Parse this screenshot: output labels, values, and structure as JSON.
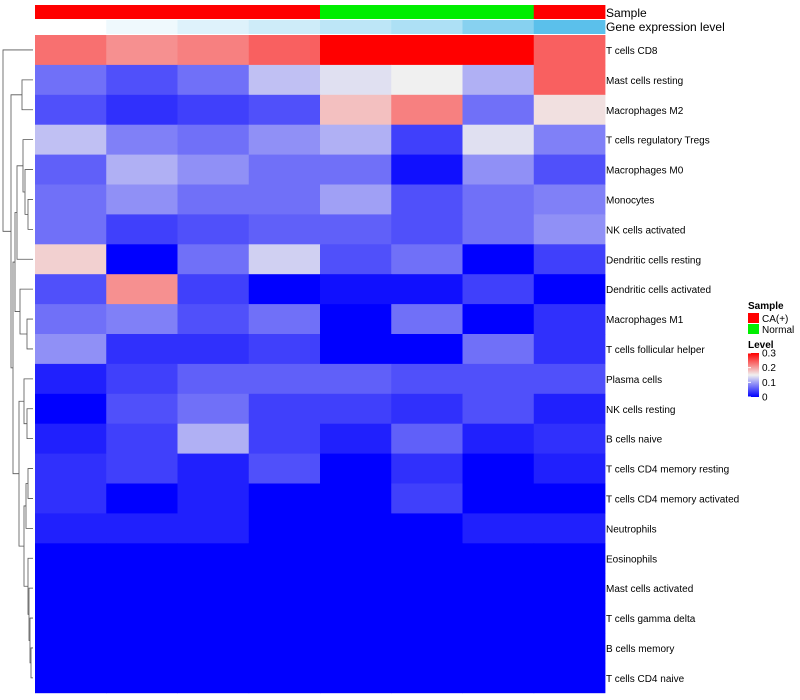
{
  "chart_data": {
    "type": "heatmap",
    "annotation_tracks": {
      "sample_label": "Sample",
      "expression_label": "Gene expression level"
    },
    "columns": [
      {
        "sample": "CA(+)",
        "expression_level": 0.0
      },
      {
        "sample": "CA(+)",
        "expression_level": 0.03
      },
      {
        "sample": "CA(+)",
        "expression_level": 0.06
      },
      {
        "sample": "CA(+)",
        "expression_level": 0.09
      },
      {
        "sample": "Normal",
        "expression_level": 0.12
      },
      {
        "sample": "Normal",
        "expression_level": 0.15
      },
      {
        "sample": "Normal",
        "expression_level": 0.22
      },
      {
        "sample": "CA(+)",
        "expression_level": 0.3
      }
    ],
    "rows": [
      "T cells CD8",
      "Mast cells resting",
      "Macrophages M2",
      "T cells regulatory  Tregs",
      "Macrophages M0",
      "Monocytes",
      "NK cells activated",
      "Dendritic cells resting",
      "Dendritic cells activated",
      "Macrophages M1",
      "T cells follicular helper",
      "Plasma cells",
      "NK cells resting",
      "B cells naive",
      "T cells CD4 memory resting",
      "T cells CD4 memory activated",
      "Neutrophils",
      "Eosinophils",
      "Mast cells activated",
      "T cells gamma delta",
      "B cells memory",
      "T cells CD4 naive"
    ],
    "values": [
      [
        0.23,
        0.21,
        0.22,
        0.24,
        0.3,
        0.3,
        0.3,
        0.24
      ],
      [
        0.07,
        0.05,
        0.07,
        0.12,
        0.14,
        0.15,
        0.11,
        0.24
      ],
      [
        0.05,
        0.03,
        0.04,
        0.05,
        0.18,
        0.22,
        0.07,
        0.16
      ],
      [
        0.12,
        0.08,
        0.07,
        0.09,
        0.11,
        0.04,
        0.14,
        0.08
      ],
      [
        0.06,
        0.11,
        0.09,
        0.07,
        0.07,
        0.01,
        0.09,
        0.05
      ],
      [
        0.07,
        0.09,
        0.07,
        0.07,
        0.1,
        0.05,
        0.07,
        0.08
      ],
      [
        0.07,
        0.04,
        0.05,
        0.06,
        0.06,
        0.05,
        0.07,
        0.09
      ],
      [
        0.17,
        0.0,
        0.07,
        0.13,
        0.05,
        0.07,
        0.0,
        0.04
      ],
      [
        0.05,
        0.21,
        0.04,
        0.0,
        0.01,
        0.01,
        0.04,
        0.0
      ],
      [
        0.07,
        0.08,
        0.05,
        0.07,
        0.0,
        0.07,
        0.0,
        0.03
      ],
      [
        0.09,
        0.03,
        0.03,
        0.04,
        0.0,
        0.0,
        0.07,
        0.03
      ],
      [
        0.02,
        0.04,
        0.06,
        0.06,
        0.06,
        0.05,
        0.05,
        0.05
      ],
      [
        0.0,
        0.05,
        0.07,
        0.04,
        0.04,
        0.03,
        0.05,
        0.02
      ],
      [
        0.02,
        0.04,
        0.11,
        0.04,
        0.02,
        0.06,
        0.02,
        0.03
      ],
      [
        0.03,
        0.04,
        0.02,
        0.05,
        0.0,
        0.03,
        0.0,
        0.02
      ],
      [
        0.03,
        0.0,
        0.02,
        0.0,
        0.0,
        0.04,
        0.0,
        0.0
      ],
      [
        0.02,
        0.02,
        0.02,
        0.0,
        0.0,
        0.0,
        0.02,
        0.02
      ],
      [
        0.0,
        0.0,
        0.0,
        0.0,
        0.0,
        0.0,
        0.0,
        0.0
      ],
      [
        0.0,
        0.0,
        0.0,
        0.0,
        0.0,
        0.0,
        0.0,
        0.0
      ],
      [
        0.0,
        0.0,
        0.0,
        0.0,
        0.0,
        0.0,
        0.0,
        0.0
      ],
      [
        0.0,
        0.0,
        0.0,
        0.0,
        0.0,
        0.0,
        0.0,
        0.0
      ],
      [
        0.0,
        0.0,
        0.0,
        0.0,
        0.0,
        0.0,
        0.0,
        0.0
      ]
    ],
    "color_scale": {
      "min": 0,
      "max": 0.3,
      "low": "#0000ff",
      "mid": "#f0f0f0",
      "high": "#ff0000"
    },
    "legend": {
      "sample_title": "Sample",
      "sample_entries": [
        {
          "label": "CA(+)",
          "color": "#ff0000"
        },
        {
          "label": "Normal",
          "color": "#00ee00"
        }
      ],
      "level_title": "Level",
      "level_ticks": [
        {
          "label": "0.3",
          "value": 0.3
        },
        {
          "label": "0.2",
          "value": 0.2
        },
        {
          "label": "0.1",
          "value": 0.1
        },
        {
          "label": "0",
          "value": 0
        }
      ]
    },
    "expression_colors": {
      "low": "#ffffff",
      "high": "#5bc0eb"
    },
    "legend_placement": "right",
    "dendrogram": "rows-left"
  }
}
